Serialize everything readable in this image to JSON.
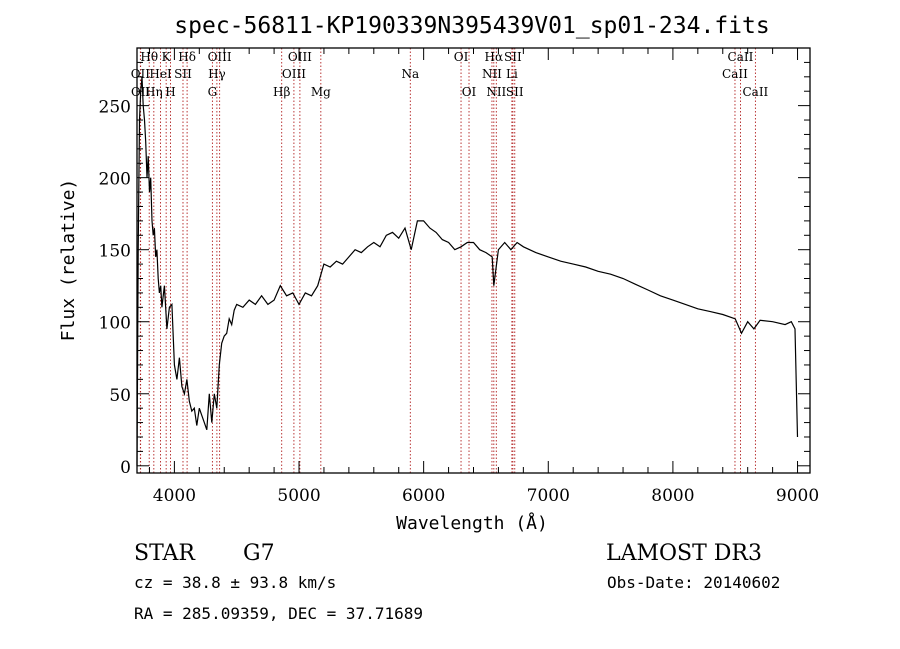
{
  "chart_data": {
    "type": "line",
    "title": "spec-56811-KP190339N395439V01_sp01-234.fits",
    "xlabel": "Wavelength (Å)",
    "ylabel": "Flux (relative)",
    "xlim": [
      3700,
      9100
    ],
    "ylim": [
      -5,
      290
    ],
    "xticks": [
      4000,
      5000,
      6000,
      7000,
      8000,
      9000
    ],
    "yticks": [
      0,
      50,
      100,
      150,
      200,
      250
    ],
    "grid": false,
    "series": [
      {
        "x": [
          3700,
          3710,
          3720,
          3730,
          3740,
          3750,
          3760,
          3770,
          3780,
          3790,
          3800,
          3810,
          3820,
          3830,
          3840,
          3850,
          3860,
          3870,
          3880,
          3890,
          3900,
          3920,
          3940,
          3960,
          3980,
          4000,
          4020,
          4040,
          4060,
          4080,
          4100,
          4120,
          4140,
          4160,
          4180,
          4200,
          4220,
          4240,
          4260,
          4280,
          4300,
          4320,
          4340,
          4360,
          4380,
          4400,
          4420,
          4440,
          4460,
          4480,
          4500,
          4550,
          4600,
          4650,
          4700,
          4750,
          4800,
          4850,
          4900,
          4950,
          5000,
          5050,
          5100,
          5150,
          5200,
          5250,
          5300,
          5350,
          5400,
          5450,
          5500,
          5550,
          5600,
          5650,
          5700,
          5750,
          5800,
          5850,
          5900,
          5950,
          6000,
          6050,
          6100,
          6150,
          6200,
          6250,
          6300,
          6350,
          6400,
          6450,
          6500,
          6550,
          6563,
          6600,
          6650,
          6700,
          6750,
          6800,
          6900,
          7000,
          7100,
          7200,
          7300,
          7400,
          7500,
          7600,
          7700,
          7800,
          7900,
          8000,
          8100,
          8200,
          8300,
          8400,
          8500,
          8550,
          8600,
          8650,
          8700,
          8800,
          8900,
          8950,
          8980,
          9000
        ],
        "y": [
          0,
          150,
          240,
          260,
          270,
          250,
          240,
          225,
          200,
          215,
          190,
          200,
          170,
          160,
          165,
          145,
          150,
          130,
          120,
          125,
          110,
          125,
          95,
          110,
          112,
          70,
          60,
          75,
          55,
          50,
          60,
          45,
          38,
          40,
          28,
          40,
          35,
          30,
          25,
          50,
          30,
          50,
          40,
          70,
          85,
          90,
          92,
          102,
          98,
          108,
          112,
          110,
          115,
          112,
          118,
          112,
          115,
          125,
          118,
          120,
          112,
          120,
          118,
          125,
          140,
          138,
          142,
          140,
          145,
          150,
          148,
          152,
          155,
          152,
          160,
          162,
          158,
          165,
          150,
          170,
          170,
          165,
          162,
          157,
          155,
          150,
          152,
          155,
          155,
          150,
          148,
          145,
          125,
          150,
          155,
          150,
          155,
          152,
          148,
          145,
          142,
          140,
          138,
          135,
          133,
          130,
          126,
          122,
          118,
          115,
          112,
          109,
          107,
          105,
          102,
          92,
          100,
          95,
          101,
          100,
          98,
          100,
          95,
          20
        ]
      }
    ],
    "line_markers": {
      "row1": [
        {
          "label": "Hθ",
          "x": 3798
        },
        {
          "label": "K",
          "x": 3934
        },
        {
          "label": "Hδ",
          "x": 4102
        },
        {
          "label": "OIII",
          "x": 4363
        },
        {
          "label": "OIII",
          "x": 5007
        },
        {
          "label": "OI",
          "x": 6300
        },
        {
          "label": "Hα",
          "x": 6563
        },
        {
          "label": "SII",
          "x": 6716
        },
        {
          "label": "CaII",
          "x": 8542
        }
      ],
      "row2": [
        {
          "label": "OII",
          "x": 3727
        },
        {
          "label": "HeI",
          "x": 3889
        },
        {
          "label": "SII",
          "x": 4069
        },
        {
          "label": "Hγ",
          "x": 4341
        },
        {
          "label": "OIII",
          "x": 4959
        },
        {
          "label": "Na",
          "x": 5893
        },
        {
          "label": "NII",
          "x": 6548
        },
        {
          "label": "Li",
          "x": 6708
        },
        {
          "label": "CaII",
          "x": 8498
        }
      ],
      "row3": [
        {
          "label": "OII",
          "x": 3729
        },
        {
          "label": "Hη",
          "x": 3835
        },
        {
          "label": "H",
          "x": 3969
        },
        {
          "label": "G",
          "x": 4305
        },
        {
          "label": "Hβ",
          "x": 4861
        },
        {
          "label": "Mg",
          "x": 5175
        },
        {
          "label": "OI",
          "x": 6364
        },
        {
          "label": "NII",
          "x": 6583
        },
        {
          "label": "SII",
          "x": 6731
        },
        {
          "label": "CaII",
          "x": 8662
        }
      ]
    }
  },
  "info": {
    "object_class": "STAR",
    "subclass": "G7",
    "survey": "LAMOST DR3",
    "redshift": "cz = 38.8 ± 93.8 km/s",
    "obs_date": "Obs-Date: 20140602",
    "coords": "RA = 285.09359, DEC =  37.71689"
  }
}
